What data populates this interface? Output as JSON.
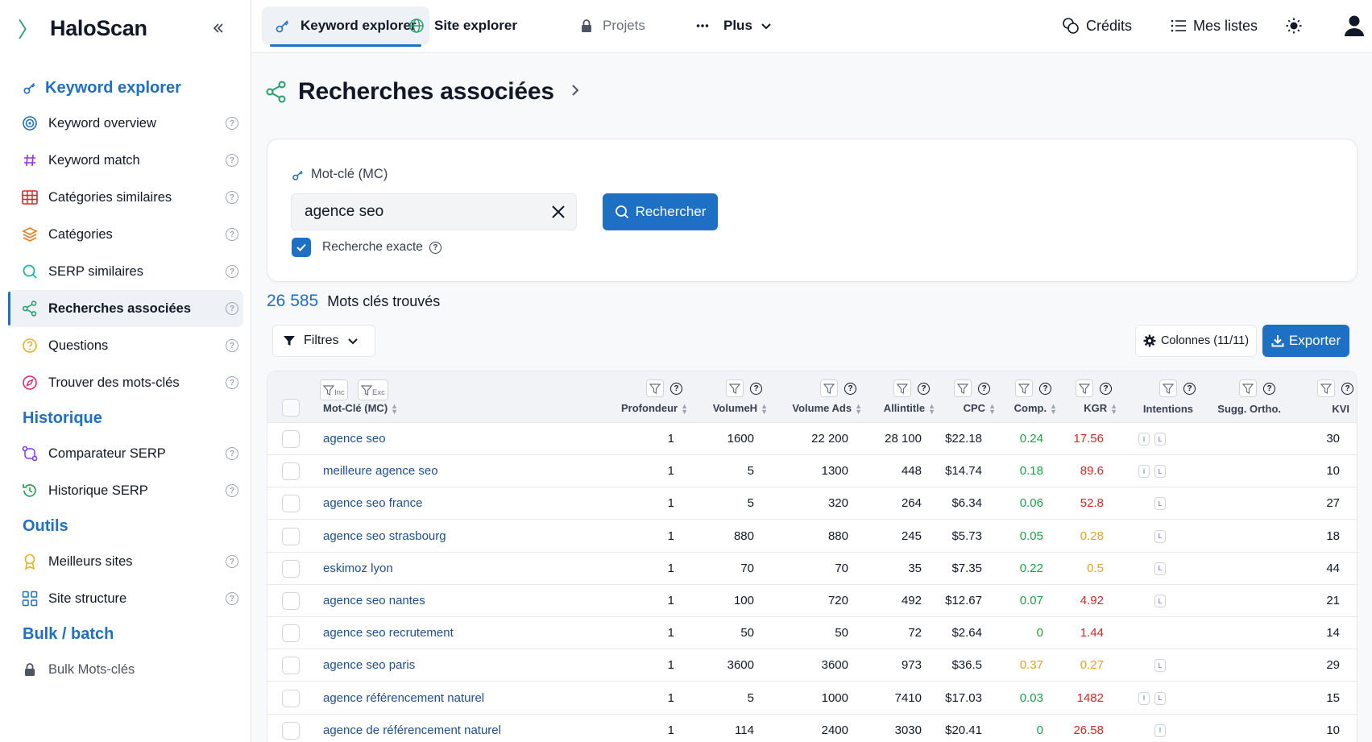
{
  "app": {
    "name": "HaloScan"
  },
  "sidebar": {
    "sections": [
      {
        "title": "Keyword explorer"
      },
      {
        "title": "Historique"
      },
      {
        "title": "Outils"
      },
      {
        "title": "Bulk / batch"
      }
    ],
    "explorer_items": [
      {
        "label": "Keyword overview",
        "icon": "target-icon",
        "color": "#1d70c4"
      },
      {
        "label": "Keyword match",
        "icon": "hash-icon",
        "color": "#9333ea"
      },
      {
        "label": "Catégories similaires",
        "icon": "grid-icon",
        "color": "#dc2626"
      },
      {
        "label": "Catégories",
        "icon": "layers-icon",
        "color": "#ea7c1a"
      },
      {
        "label": "SERP similaires",
        "icon": "search-icon",
        "color": "#14b8a6"
      },
      {
        "label": "Recherches associées",
        "icon": "share-icon",
        "color": "#22a06b"
      },
      {
        "label": "Questions",
        "icon": "question-icon",
        "color": "#e8b21a"
      },
      {
        "label": "Trouver des mots-clés",
        "icon": "compass-icon",
        "color": "#db2777"
      }
    ],
    "historique_items": [
      {
        "label": "Comparateur SERP",
        "icon": "compare-icon",
        "color": "#7c3aed"
      },
      {
        "label": "Historique SERP",
        "icon": "history-icon",
        "color": "#16a34a"
      }
    ],
    "outils_items": [
      {
        "label": "Meilleurs sites",
        "icon": "award-icon",
        "color": "#e8b21a"
      },
      {
        "label": "Site structure",
        "icon": "structure-icon",
        "color": "#1d70c4"
      }
    ],
    "bulk_items": [
      {
        "label": "Bulk Mots-clés",
        "icon": "lock-icon",
        "color": "#4b5563"
      }
    ]
  },
  "topbar": {
    "tabs": [
      {
        "label": "Keyword explorer"
      },
      {
        "label": "Site explorer"
      },
      {
        "label": "Projets"
      },
      {
        "label": "Plus"
      }
    ],
    "credits": "Crédits",
    "lists": "Mes listes"
  },
  "page": {
    "title": "Recherches associées",
    "field_label": "Mot-clé (MC)",
    "keyword": "agence seo",
    "search_button": "Rechercher",
    "exact_label": "Recherche exacte",
    "count": "26 585",
    "count_label": "Mots clés trouvés",
    "filters": "Filtres",
    "columns": "Colonnes (11/11)",
    "export": "Exporter"
  },
  "table": {
    "inc": "Inc",
    "exc": "Exc",
    "headers": {
      "keyword": "Mot-Clé (MC)",
      "depth": "Profondeur",
      "volume": "VolumeH",
      "volume_ads": "Volume Ads",
      "allintitle": "Allintitle",
      "cpc": "CPC",
      "comp": "Comp.",
      "kgr": "KGR",
      "intentions": "Intentions",
      "sugg": "Sugg. Ortho.",
      "kvi": "KVI"
    },
    "rows": [
      {
        "keyword": "agence seo",
        "depth": "1",
        "volume": "1600",
        "volume_ads": "22 200",
        "allintitle": "28 100",
        "cpc": "$22.18",
        "comp": "0.24",
        "comp_color": "green",
        "kgr": "17.56",
        "kgr_color": "red",
        "intents": [
          "I",
          "L"
        ],
        "kvi": "30"
      },
      {
        "keyword": "meilleure agence seo",
        "depth": "1",
        "volume": "5",
        "volume_ads": "1300",
        "allintitle": "448",
        "cpc": "$14.74",
        "comp": "0.18",
        "comp_color": "green",
        "kgr": "89.6",
        "kgr_color": "red",
        "intents": [
          "I",
          "L"
        ],
        "kvi": "10"
      },
      {
        "keyword": "agence seo france",
        "depth": "1",
        "volume": "5",
        "volume_ads": "320",
        "allintitle": "264",
        "cpc": "$6.34",
        "comp": "0.06",
        "comp_color": "green",
        "kgr": "52.8",
        "kgr_color": "red",
        "intents": [
          "L"
        ],
        "kvi": "27"
      },
      {
        "keyword": "agence seo strasbourg",
        "depth": "1",
        "volume": "880",
        "volume_ads": "880",
        "allintitle": "245",
        "cpc": "$5.73",
        "comp": "0.05",
        "comp_color": "green",
        "kgr": "0.28",
        "kgr_color": "orange",
        "intents": [
          "L"
        ],
        "kvi": "18"
      },
      {
        "keyword": "eskimoz lyon",
        "depth": "1",
        "volume": "70",
        "volume_ads": "70",
        "allintitle": "35",
        "cpc": "$7.35",
        "comp": "0.22",
        "comp_color": "green",
        "kgr": "0.5",
        "kgr_color": "orange",
        "intents": [
          "L"
        ],
        "kvi": "44"
      },
      {
        "keyword": "agence seo nantes",
        "depth": "1",
        "volume": "100",
        "volume_ads": "720",
        "allintitle": "492",
        "cpc": "$12.67",
        "comp": "0.07",
        "comp_color": "green",
        "kgr": "4.92",
        "kgr_color": "red",
        "intents": [
          "L"
        ],
        "kvi": "21"
      },
      {
        "keyword": "agence seo recrutement",
        "depth": "1",
        "volume": "50",
        "volume_ads": "50",
        "allintitle": "72",
        "cpc": "$2.64",
        "comp": "0",
        "comp_color": "green",
        "kgr": "1.44",
        "kgr_color": "red",
        "intents": [],
        "kvi": "14"
      },
      {
        "keyword": "agence seo paris",
        "depth": "1",
        "volume": "3600",
        "volume_ads": "3600",
        "allintitle": "973",
        "cpc": "$36.5",
        "comp": "0.37",
        "comp_color": "orange",
        "kgr": "0.27",
        "kgr_color": "orange",
        "intents": [
          "L"
        ],
        "kvi": "29"
      },
      {
        "keyword": "agence référencement naturel",
        "depth": "1",
        "volume": "5",
        "volume_ads": "1000",
        "allintitle": "7410",
        "cpc": "$17.03",
        "comp": "0.03",
        "comp_color": "green",
        "kgr": "1482",
        "kgr_color": "red",
        "intents": [
          "I",
          "L"
        ],
        "kvi": "15"
      },
      {
        "keyword": "agence de référencement naturel",
        "depth": "1",
        "volume": "114",
        "volume_ads": "2400",
        "allintitle": "3030",
        "cpc": "$20.41",
        "comp": "0",
        "comp_color": "green",
        "kgr": "26.58",
        "kgr_color": "red",
        "intents": [
          "I"
        ],
        "kvi": "10"
      }
    ]
  }
}
